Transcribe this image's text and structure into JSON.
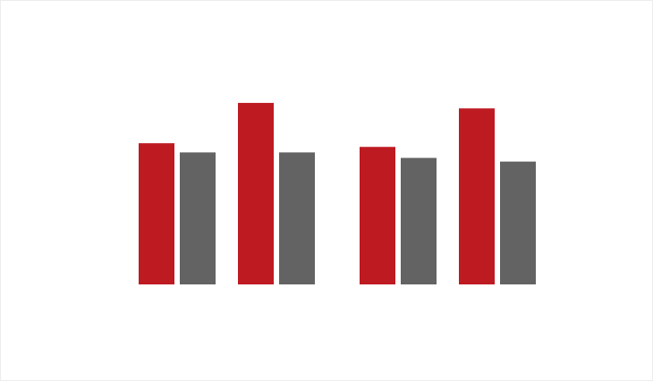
{
  "chart_data": {
    "type": "bar",
    "title": "",
    "xlabel": "",
    "ylabel": "",
    "grid": false,
    "legend": "none",
    "ylim": [
      0,
      100
    ],
    "series": [
      {
        "values": [
          77,
          99,
          75,
          96
        ],
        "color": "#be1a22"
      },
      {
        "values": [
          72,
          72,
          69,
          67
        ],
        "color": "#636363"
      }
    ]
  }
}
